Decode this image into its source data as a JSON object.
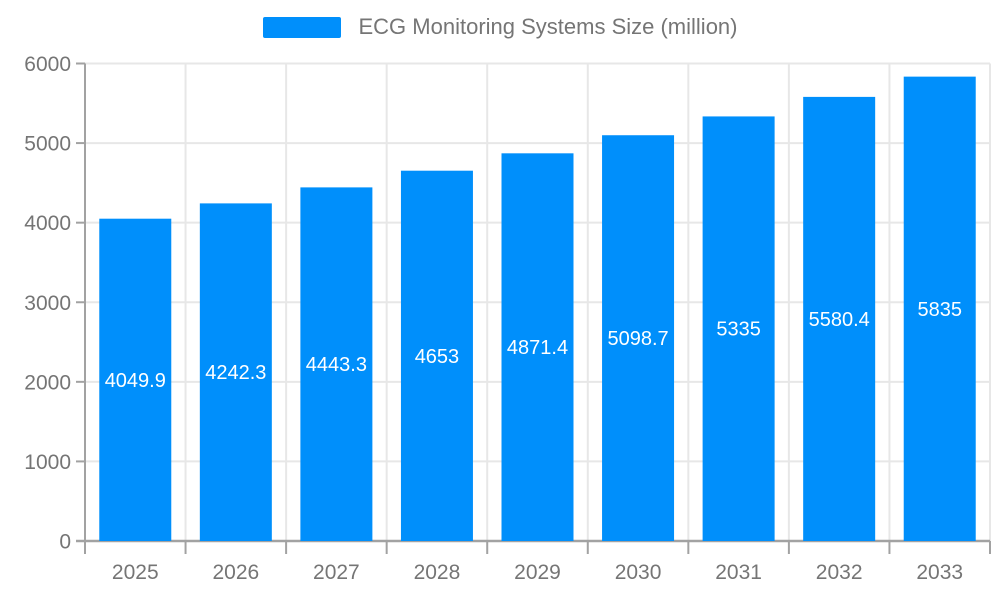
{
  "chart_data": {
    "type": "bar",
    "title": "ECG Monitoring Systems Size (million)",
    "legend": {
      "label": "ECG Monitoring Systems Size (million)",
      "position": "top"
    },
    "categories": [
      "2025",
      "2026",
      "2027",
      "2028",
      "2029",
      "2030",
      "2031",
      "2032",
      "2033"
    ],
    "series": [
      {
        "name": "ECG Monitoring Systems Size (million)",
        "values": [
          4049.9,
          4242.3,
          4443.3,
          4653,
          4871.4,
          5098.7,
          5335,
          5580.4,
          5835
        ]
      }
    ],
    "data_labels": [
      "4049.9",
      "4242.3",
      "4443.3",
      "4653",
      "4871.4",
      "5098.7",
      "5335",
      "5580.4",
      "5835"
    ],
    "xlabel": "",
    "ylabel": "",
    "ylim": [
      0,
      6000
    ],
    "yticks": [
      0,
      1000,
      2000,
      3000,
      4000,
      5000,
      6000
    ],
    "grid": true,
    "colors": {
      "bar": "#008FFB",
      "data_label_text": "#ffffff",
      "axis_label_text": "#757575",
      "legend_text": "#757575",
      "gridline": "#e7e7e7",
      "axis_line": "#a2a2a2",
      "background": "#ffffff"
    }
  }
}
